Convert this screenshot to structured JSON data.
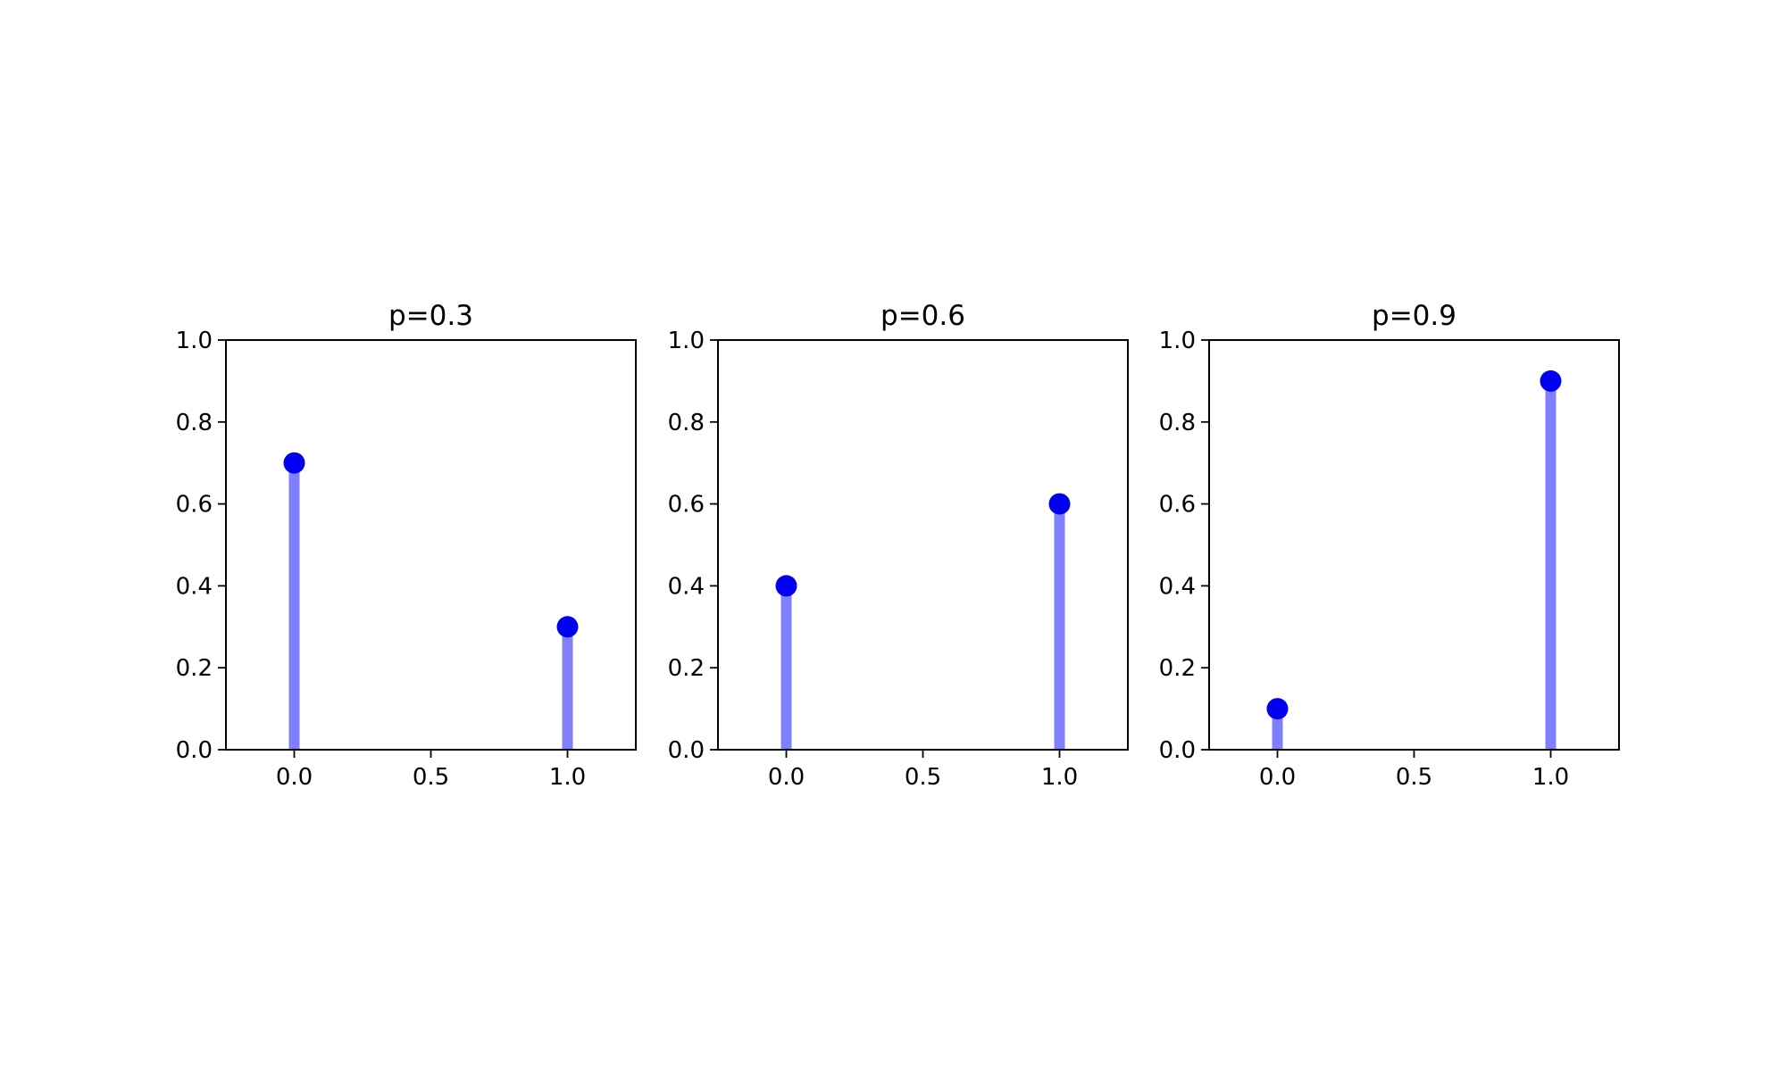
{
  "chart_data": [
    {
      "type": "stem",
      "title": "p=0.3",
      "xlabel": "",
      "ylabel": "",
      "x": [
        0.0,
        1.0
      ],
      "values": [
        0.7,
        0.3
      ],
      "xlim": [
        -0.25,
        1.25
      ],
      "ylim": [
        0.0,
        1.0
      ],
      "xticks": [
        0.0,
        0.5,
        1.0
      ],
      "xtick_labels": [
        "0.0",
        "0.5",
        "1.0"
      ],
      "yticks": [
        0.0,
        0.2,
        0.4,
        0.6,
        0.8,
        1.0
      ],
      "ytick_labels": [
        "0.0",
        "0.2",
        "0.4",
        "0.6",
        "0.8",
        "1.0"
      ],
      "grid": false
    },
    {
      "type": "stem",
      "title": "p=0.6",
      "xlabel": "",
      "ylabel": "",
      "x": [
        0.0,
        1.0
      ],
      "values": [
        0.4,
        0.6
      ],
      "xlim": [
        -0.25,
        1.25
      ],
      "ylim": [
        0.0,
        1.0
      ],
      "xticks": [
        0.0,
        0.5,
        1.0
      ],
      "xtick_labels": [
        "0.0",
        "0.5",
        "1.0"
      ],
      "yticks": [
        0.0,
        0.2,
        0.4,
        0.6,
        0.8,
        1.0
      ],
      "ytick_labels": [
        "0.0",
        "0.2",
        "0.4",
        "0.6",
        "0.8",
        "1.0"
      ],
      "grid": false
    },
    {
      "type": "stem",
      "title": "p=0.9",
      "xlabel": "",
      "ylabel": "",
      "x": [
        0.0,
        1.0
      ],
      "values": [
        0.1,
        0.9
      ],
      "xlim": [
        -0.25,
        1.25
      ],
      "ylim": [
        0.0,
        1.0
      ],
      "xticks": [
        0.0,
        0.5,
        1.0
      ],
      "xtick_labels": [
        "0.0",
        "0.5",
        "1.0"
      ],
      "yticks": [
        0.0,
        0.2,
        0.4,
        0.6,
        0.8,
        1.0
      ],
      "ytick_labels": [
        "0.0",
        "0.2",
        "0.4",
        "0.6",
        "0.8",
        "1.0"
      ],
      "grid": false
    }
  ],
  "colors": {
    "stem_line": "#8080ff",
    "marker": "#0000ee",
    "axis": "#000000"
  }
}
